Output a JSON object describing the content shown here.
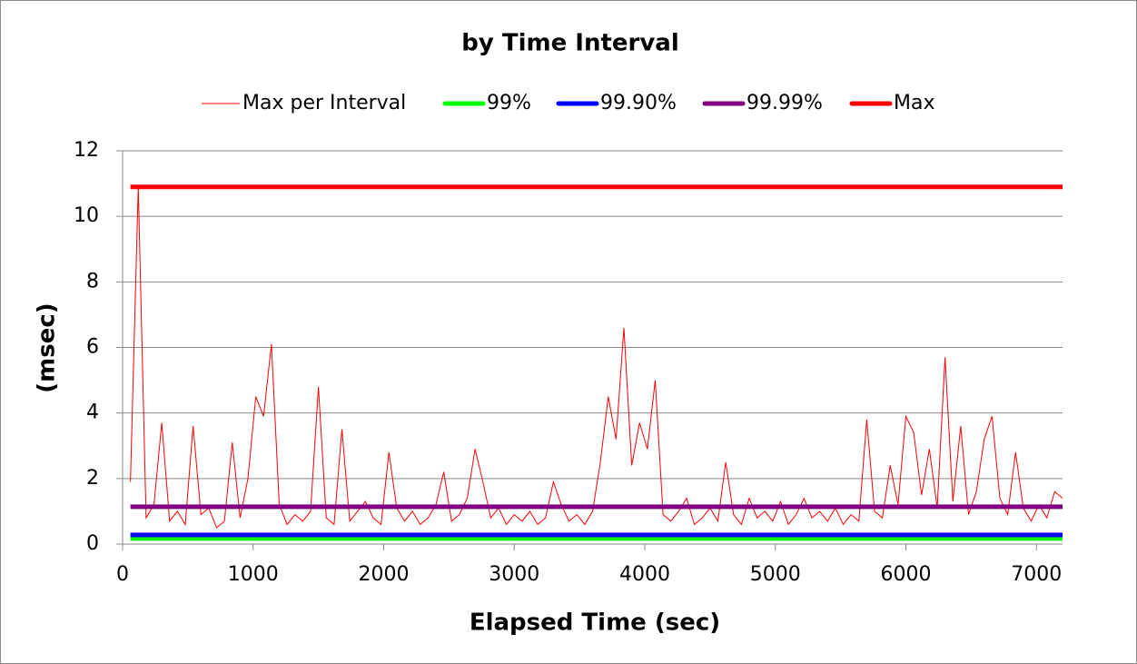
{
  "chart_data": {
    "type": "line",
    "title": "by Time Interval",
    "x_label": "Elapsed Time (sec)",
    "y_label": "(msec)",
    "xlim": [
      0,
      7200
    ],
    "xticks": [
      0,
      1000,
      2000,
      3000,
      4000,
      5000,
      6000,
      7000
    ],
    "ylim": [
      0,
      12
    ],
    "yticks": [
      0,
      2,
      4,
      6,
      8,
      10,
      12
    ],
    "grid": true,
    "series": [
      {
        "name": "Max per Interval",
        "color": "#ff0000",
        "width": 1,
        "x": [
          60,
          120,
          180,
          240,
          300,
          360,
          420,
          480,
          540,
          600,
          660,
          720,
          780,
          840,
          900,
          960,
          1020,
          1080,
          1140,
          1200,
          1260,
          1320,
          1380,
          1440,
          1500,
          1560,
          1620,
          1680,
          1740,
          1800,
          1860,
          1920,
          1980,
          2040,
          2100,
          2160,
          2220,
          2280,
          2340,
          2400,
          2460,
          2520,
          2580,
          2640,
          2700,
          2760,
          2820,
          2880,
          2940,
          3000,
          3060,
          3120,
          3180,
          3240,
          3300,
          3360,
          3420,
          3480,
          3540,
          3600,
          3660,
          3720,
          3780,
          3840,
          3900,
          3960,
          4020,
          4080,
          4140,
          4200,
          4260,
          4320,
          4380,
          4440,
          4500,
          4560,
          4620,
          4680,
          4740,
          4800,
          4860,
          4920,
          4980,
          5040,
          5100,
          5160,
          5220,
          5280,
          5340,
          5400,
          5460,
          5520,
          5580,
          5640,
          5700,
          5760,
          5820,
          5880,
          5940,
          6000,
          6060,
          6120,
          6180,
          6240,
          6300,
          6360,
          6420,
          6480,
          6540,
          6600,
          6660,
          6720,
          6780,
          6840,
          6900,
          6960,
          7020,
          7080,
          7140,
          7200
        ],
        "values": [
          1.9,
          10.9,
          0.8,
          1.2,
          3.7,
          0.7,
          1.0,
          0.6,
          3.6,
          0.9,
          1.1,
          0.5,
          0.7,
          3.1,
          0.8,
          2.0,
          4.5,
          3.9,
          6.1,
          1.2,
          0.6,
          0.9,
          0.7,
          1.0,
          4.8,
          0.8,
          0.6,
          3.5,
          0.7,
          1.0,
          1.3,
          0.8,
          0.6,
          2.8,
          1.1,
          0.7,
          1.0,
          0.6,
          0.8,
          1.2,
          2.2,
          0.7,
          0.9,
          1.4,
          2.9,
          1.9,
          0.8,
          1.1,
          0.6,
          0.9,
          0.7,
          1.0,
          0.6,
          0.8,
          1.9,
          1.2,
          0.7,
          0.9,
          0.6,
          1.0,
          2.5,
          4.5,
          3.2,
          6.6,
          2.4,
          3.7,
          2.9,
          5.0,
          0.9,
          0.7,
          1.0,
          1.4,
          0.6,
          0.8,
          1.1,
          0.7,
          2.5,
          0.9,
          0.6,
          1.4,
          0.8,
          1.0,
          0.7,
          1.3,
          0.6,
          0.9,
          1.4,
          0.8,
          1.0,
          0.7,
          1.1,
          0.6,
          0.9,
          0.7,
          3.8,
          1.0,
          0.8,
          2.4,
          1.2,
          3.9,
          3.4,
          1.5,
          2.9,
          1.1,
          5.7,
          1.3,
          3.6,
          0.9,
          1.6,
          3.2,
          3.9,
          1.4,
          0.9,
          2.8,
          1.1,
          0.7,
          1.2,
          0.8,
          1.6,
          1.4
        ]
      },
      {
        "name": "99%",
        "color": "#00ff00",
        "width": 5,
        "x": [
          60,
          7200
        ],
        "values": [
          0.17,
          0.17
        ]
      },
      {
        "name": "99.90%",
        "color": "#0000ff",
        "width": 5,
        "x": [
          60,
          7200
        ],
        "values": [
          0.28,
          0.28
        ]
      },
      {
        "name": "99.99%",
        "color": "#800080",
        "width": 5,
        "x": [
          60,
          7200
        ],
        "values": [
          1.14,
          1.14
        ]
      },
      {
        "name": "Max",
        "color": "#ff0000",
        "width": 5,
        "x": [
          60,
          7200
        ],
        "values": [
          10.9,
          10.9
        ]
      }
    ]
  }
}
